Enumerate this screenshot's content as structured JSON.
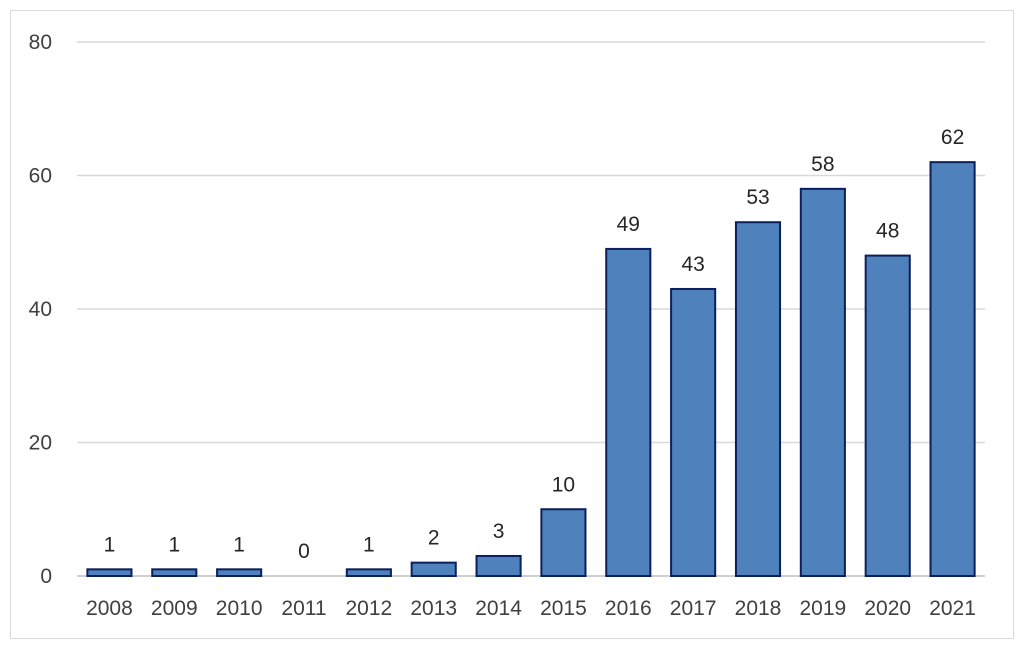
{
  "chart_data": {
    "type": "bar",
    "title": "",
    "xlabel": "",
    "ylabel": "",
    "categories": [
      "2008",
      "2009",
      "2010",
      "2011",
      "2012",
      "2013",
      "2014",
      "2015",
      "2016",
      "2017",
      "2018",
      "2019",
      "2020",
      "2021"
    ],
    "values": [
      1,
      1,
      1,
      0,
      1,
      2,
      3,
      10,
      49,
      43,
      53,
      58,
      48,
      62
    ],
    "data_labels": [
      "1",
      "1",
      "1",
      "0",
      "1",
      "2",
      "3",
      "10",
      "49",
      "43",
      "53",
      "58",
      "48",
      "62"
    ],
    "ylim": [
      0,
      80
    ],
    "y_ticks": [
      "0",
      "20",
      "40",
      "60",
      "80"
    ],
    "grid": true,
    "legend": "none",
    "colors": {
      "bar_fill": "#4f81bd",
      "bar_stroke": "#0b1f5c",
      "gridline": "#d9d9d9",
      "axis_line": "#bfbfbf",
      "frame": "#d9d9d9"
    }
  }
}
